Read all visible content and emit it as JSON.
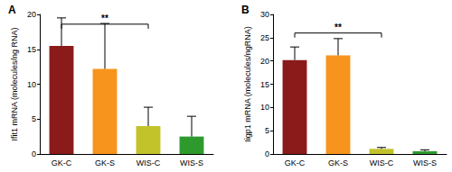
{
  "chart_data": [
    {
      "type": "bar",
      "title": "A",
      "ylabel": "Ifit1 mRNA (molecules/ng RNA)",
      "categories": [
        "GK-C",
        "GK-S",
        "WIS-C",
        "WIS-S"
      ],
      "values": [
        15.5,
        12.2,
        4.0,
        2.5
      ],
      "errors": [
        4.0,
        6.5,
        2.7,
        2.9
      ],
      "colors": [
        "#8b1a1a",
        "#f7941d",
        "#c2c22b",
        "#2e9a2e"
      ],
      "ylim": [
        0,
        20
      ],
      "yticks": [
        0,
        5,
        10,
        15,
        20
      ],
      "grid": false,
      "annotations": [
        {
          "text": "**",
          "from": "GK-C",
          "to": "WIS-C",
          "y": 18.6
        }
      ]
    },
    {
      "type": "bar",
      "title": "B",
      "ylabel": "Iigp1 mRNA (molecules/ngRNA)",
      "categories": [
        "GK-C",
        "GK-S",
        "WIS-C",
        "WIS-S"
      ],
      "values": [
        20.2,
        21.2,
        1.1,
        0.6
      ],
      "errors": [
        2.8,
        3.6,
        0.3,
        0.3
      ],
      "colors": [
        "#8b1a1a",
        "#f7941d",
        "#c2c22b",
        "#2e9a2e"
      ],
      "ylim": [
        0,
        30
      ],
      "yticks": [
        0,
        5,
        10,
        15,
        20,
        25,
        30
      ],
      "grid": false,
      "annotations": [
        {
          "text": "**",
          "from": "GK-C",
          "to": "WIS-C",
          "y": 26
        }
      ]
    }
  ]
}
